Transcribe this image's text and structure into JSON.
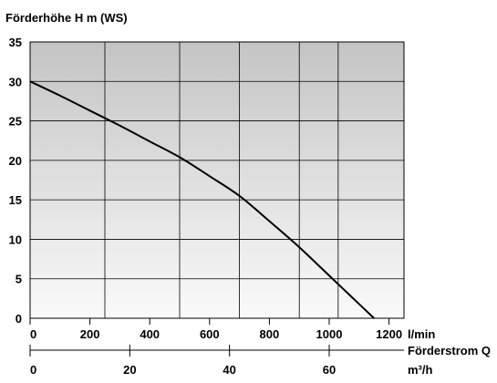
{
  "chart_data": {
    "type": "line",
    "ylabel": "Förderhöhe H m (WS)",
    "x_unit": "l/min",
    "x2_label": "Förderstrom Q",
    "x2_unit": "m³/h",
    "x_ticks": [
      0,
      200,
      400,
      600,
      800,
      1000,
      1200
    ],
    "x_gridlines": [
      0,
      250,
      500,
      700,
      900,
      1030,
      1250
    ],
    "x2_ticks": [
      0,
      20,
      40,
      60
    ],
    "y_ticks": [
      0,
      5,
      10,
      15,
      20,
      25,
      30,
      35
    ],
    "xlim": [
      0,
      1250
    ],
    "ylim": [
      0,
      35
    ],
    "grid": true,
    "series": [
      {
        "color": "#000000",
        "x": [
          0,
          100,
          200,
          300,
          400,
          500,
          600,
          700,
          800,
          900,
          1000,
          1050,
          1100,
          1150
        ],
        "y": [
          30,
          28.2,
          26.3,
          24.4,
          22.4,
          20.4,
          18.0,
          15.5,
          12.3,
          9.0,
          5.4,
          3.6,
          1.8,
          0
        ]
      }
    ]
  },
  "colors": {
    "plot_gradient_top": "#c4c4c4",
    "plot_gradient_bottom": "#fafafa",
    "line": "#000000"
  }
}
